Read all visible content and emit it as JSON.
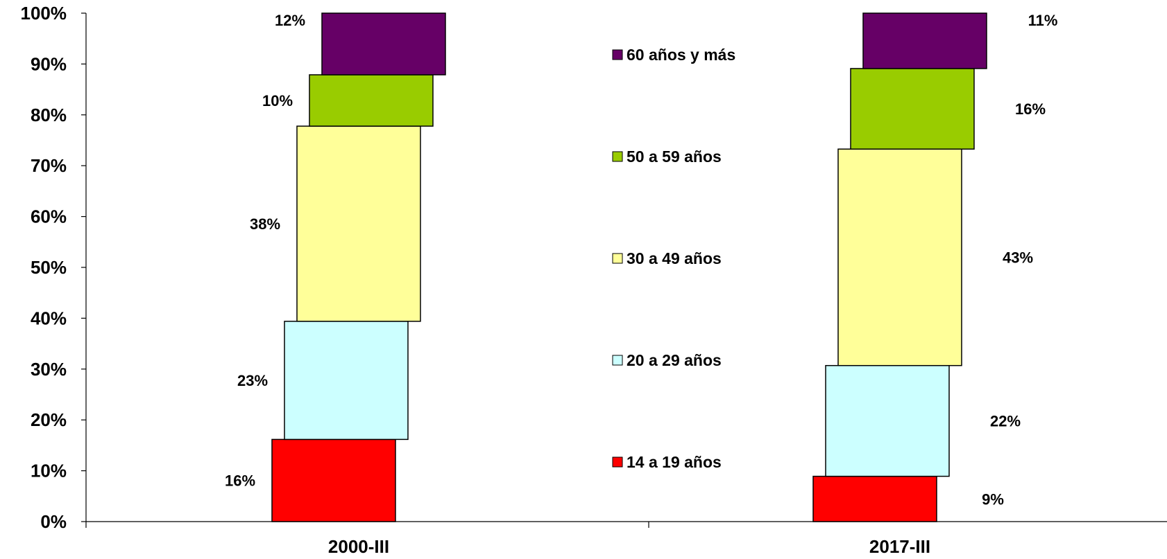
{
  "chart_data": {
    "type": "bar",
    "stacked": true,
    "percent_scale": true,
    "categories": [
      "2000-III",
      "2017-III"
    ],
    "series": [
      {
        "name": "14 a 19 años",
        "color": "#ff0000",
        "values": [
          16,
          9
        ],
        "labels": [
          "16%",
          "9%"
        ]
      },
      {
        "name": "20 a 29 años",
        "color": "#ccffff",
        "values": [
          23,
          22
        ],
        "labels": [
          "23%",
          "22%"
        ]
      },
      {
        "name": "30 a 49 años",
        "color": "#ffff99",
        "values": [
          38,
          43
        ],
        "labels": [
          "38%",
          "43%"
        ]
      },
      {
        "name": "50 a 59 años",
        "color": "#99cc00",
        "values": [
          10,
          16
        ],
        "labels": [
          "10%",
          "16%"
        ]
      },
      {
        "name": "60 años y más",
        "color": "#660066",
        "values": [
          12,
          11
        ],
        "labels": [
          "12%",
          "11%"
        ]
      }
    ],
    "y_ticks": [
      "0%",
      "10%",
      "20%",
      "30%",
      "40%",
      "50%",
      "60%",
      "70%",
      "80%",
      "90%",
      "100%"
    ],
    "ylim": [
      0,
      100
    ],
    "legend_position": "center",
    "grid": false
  }
}
